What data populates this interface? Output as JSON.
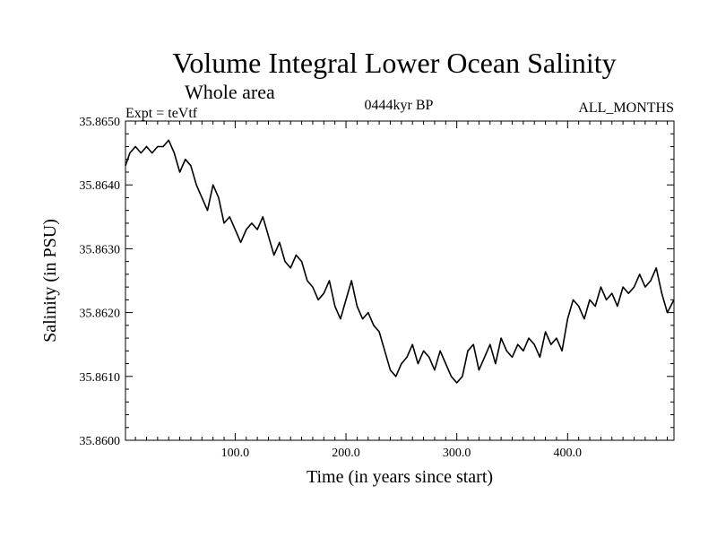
{
  "chart_data": {
    "type": "line",
    "title": "Volume Integral Lower Ocean Salinity",
    "subtitle": "Whole area",
    "header_left": "Expt = teVtf",
    "header_center": "0444kyr BP",
    "header_right": "ALL_MONTHS",
    "xlabel": "Time (in years since start)",
    "ylabel": "Salinity (in PSU)",
    "xlim": [
      1,
      496
    ],
    "ylim": [
      35.86,
      35.865
    ],
    "xticks": [
      100,
      200,
      300,
      400
    ],
    "xtick_labels": [
      "100.0",
      "200.0",
      "300.0",
      "400.0"
    ],
    "yticks": [
      35.86,
      35.861,
      35.862,
      35.863,
      35.864,
      35.865
    ],
    "ytick_labels": [
      "35.8600",
      "35.8610",
      "35.8620",
      "35.8630",
      "35.8640",
      "35.8650"
    ],
    "grid": false,
    "line_color": "#000000",
    "series": [
      {
        "x": [
          1,
          5,
          10,
          15,
          20,
          25,
          30,
          35,
          40,
          45,
          50,
          55,
          60,
          65,
          70,
          75,
          80,
          85,
          90,
          95,
          100,
          105,
          110,
          115,
          120,
          125,
          130,
          135,
          140,
          145,
          150,
          155,
          160,
          165,
          170,
          175,
          180,
          185,
          190,
          195,
          200,
          205,
          210,
          215,
          220,
          225,
          230,
          235,
          240,
          245,
          250,
          255,
          260,
          265,
          270,
          275,
          280,
          285,
          290,
          295,
          300,
          305,
          310,
          315,
          320,
          325,
          330,
          335,
          340,
          345,
          350,
          355,
          360,
          365,
          370,
          375,
          380,
          385,
          390,
          395,
          400,
          405,
          410,
          415,
          420,
          425,
          430,
          435,
          440,
          445,
          450,
          455,
          460,
          465,
          470,
          475,
          480,
          485,
          490,
          496
        ],
        "values": [
          35.8643,
          35.8645,
          35.8646,
          35.8645,
          35.8646,
          35.8645,
          35.8646,
          35.8646,
          35.8647,
          35.8645,
          35.8642,
          35.8644,
          35.8643,
          35.864,
          35.8638,
          35.8636,
          35.864,
          35.8638,
          35.8634,
          35.8635,
          35.8633,
          35.8631,
          35.8633,
          35.8634,
          35.8633,
          35.8635,
          35.8632,
          35.8629,
          35.8631,
          35.8628,
          35.8627,
          35.8629,
          35.8628,
          35.8625,
          35.8624,
          35.8622,
          35.8623,
          35.8625,
          35.8621,
          35.8619,
          35.8622,
          35.8625,
          35.8621,
          35.8619,
          35.862,
          35.8618,
          35.8617,
          35.8614,
          35.8611,
          35.861,
          35.8612,
          35.8613,
          35.8615,
          35.8612,
          35.8614,
          35.8613,
          35.8611,
          35.8614,
          35.8612,
          35.861,
          35.8609,
          35.861,
          35.8614,
          35.8615,
          35.8611,
          35.8613,
          35.8615,
          35.8612,
          35.8616,
          35.8614,
          35.8613,
          35.8615,
          35.8614,
          35.8616,
          35.8615,
          35.8613,
          35.8617,
          35.8615,
          35.8616,
          35.8614,
          35.8619,
          35.8622,
          35.8621,
          35.8619,
          35.8622,
          35.8621,
          35.8624,
          35.8622,
          35.8623,
          35.8621,
          35.8624,
          35.8623,
          35.8624,
          35.8626,
          35.8624,
          35.8625,
          35.8627,
          35.8623,
          35.862,
          35.8622
        ]
      }
    ]
  }
}
